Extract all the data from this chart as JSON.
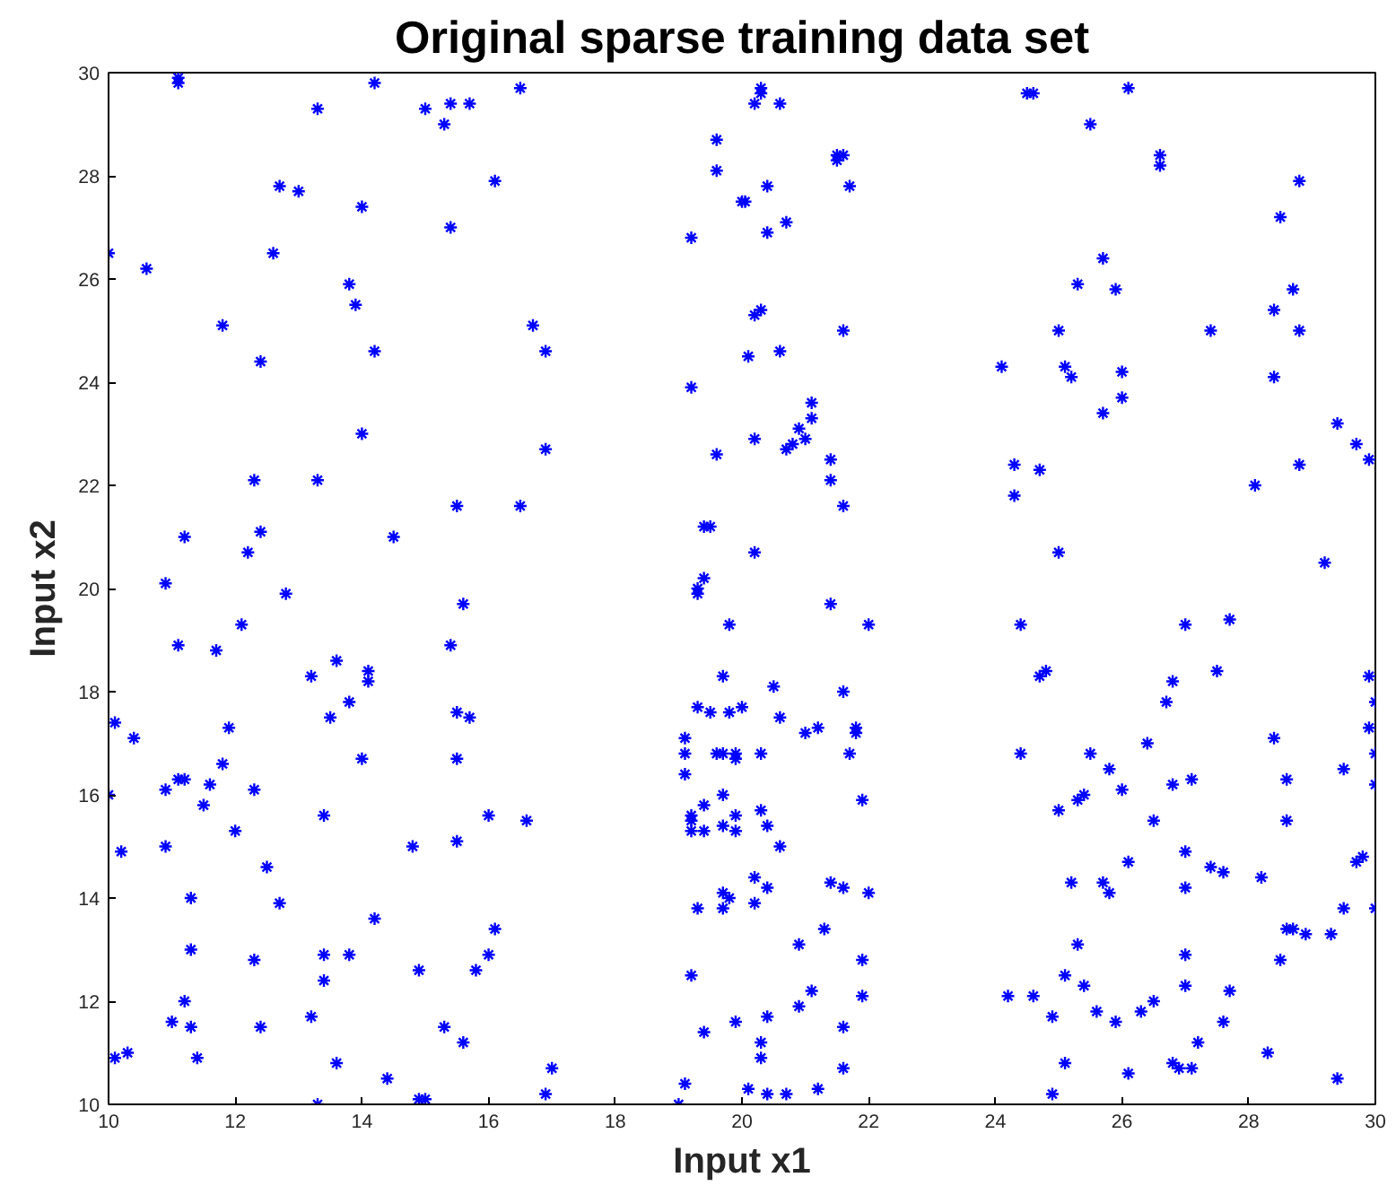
{
  "chart_data": {
    "type": "scatter",
    "title": "Original sparse training data set",
    "xlabel": "Input x1",
    "ylabel": "Input x2",
    "xlim": [
      10,
      30
    ],
    "ylim": [
      10,
      30
    ],
    "xticks": [
      10,
      12,
      14,
      16,
      18,
      20,
      22,
      24,
      26,
      28,
      30
    ],
    "yticks": [
      10,
      12,
      14,
      16,
      18,
      20,
      22,
      24,
      26,
      28,
      30
    ],
    "grid": false,
    "marker": "cross",
    "series": [
      {
        "color": "#0000ff",
        "x": [
          10.0,
          10.1,
          10.0,
          10.2,
          10.1,
          10.3,
          10.4,
          10.6,
          10.9,
          10.9,
          10.9,
          11.0,
          11.1,
          11.1,
          11.1,
          11.2,
          11.1,
          11.2,
          11.2,
          11.3,
          11.3,
          11.3,
          11.5,
          11.4,
          11.6,
          11.7,
          11.8,
          11.8,
          11.9,
          12.0,
          12.1,
          12.2,
          12.3,
          12.4,
          12.3,
          12.3,
          12.4,
          12.4,
          12.5,
          12.6,
          12.7,
          12.8,
          12.7,
          13.0,
          13.2,
          13.2,
          13.3,
          13.3,
          13.4,
          13.4,
          13.4,
          13.3,
          13.5,
          13.6,
          13.6,
          13.8,
          13.8,
          13.8,
          13.9,
          14.0,
          14.0,
          14.0,
          14.1,
          14.1,
          14.2,
          14.2,
          14.2,
          14.4,
          14.5,
          14.8,
          14.9,
          14.9,
          15.0,
          15.0,
          15.3,
          15.3,
          15.4,
          15.4,
          15.4,
          15.5,
          15.5,
          15.5,
          15.5,
          15.6,
          15.6,
          15.7,
          15.7,
          15.8,
          16.0,
          16.1,
          16.0,
          16.1,
          16.5,
          16.5,
          16.6,
          16.7,
          16.9,
          16.9,
          17.0,
          16.9,
          19.0,
          19.1,
          19.2,
          19.2,
          19.1,
          19.1,
          19.1,
          19.2,
          19.2,
          19.2,
          19.2,
          19.3,
          19.3,
          19.3,
          19.3,
          19.4,
          19.4,
          19.4,
          19.4,
          19.4,
          19.5,
          19.5,
          19.6,
          19.6,
          19.6,
          19.7,
          19.6,
          19.7,
          19.7,
          19.7,
          19.7,
          19.7,
          19.8,
          19.8,
          19.9,
          19.9,
          19.9,
          19.9,
          19.8,
          19.9,
          20.0,
          20.05,
          20.0,
          20.1,
          20.1,
          20.2,
          20.2,
          20.2,
          20.2,
          20.3,
          20.2,
          20.2,
          20.3,
          20.3,
          20.3,
          20.3,
          20.3,
          20.4,
          20.3,
          20.4,
          20.4,
          20.4,
          20.4,
          20.4,
          20.5,
          20.6,
          20.6,
          20.7,
          20.7,
          20.6,
          20.6,
          20.7,
          20.8,
          20.9,
          20.9,
          20.9,
          21.0,
          21.0,
          21.1,
          21.1,
          21.1,
          21.2,
          21.2,
          21.3,
          21.4,
          21.4,
          21.4,
          21.4,
          21.5,
          21.5,
          21.6,
          21.6,
          21.6,
          21.6,
          21.6,
          21.6,
          21.6,
          21.7,
          21.7,
          21.8,
          21.8,
          21.9,
          21.9,
          21.9,
          22.0,
          22.0,
          24.1,
          24.2,
          24.3,
          24.3,
          24.4,
          24.4,
          24.5,
          24.6,
          24.6,
          24.7,
          24.7,
          24.8,
          24.9,
          24.9,
          25.0,
          25.0,
          25.0,
          25.1,
          25.1,
          25.1,
          25.2,
          25.2,
          25.3,
          25.3,
          25.3,
          25.4,
          25.4,
          25.5,
          25.5,
          25.6,
          25.7,
          25.8,
          25.7,
          25.7,
          25.8,
          25.9,
          25.9,
          26.0,
          26.0,
          26.1,
          26.0,
          26.1,
          26.1,
          26.3,
          26.4,
          26.5,
          26.5,
          26.6,
          26.6,
          26.7,
          26.8,
          26.8,
          26.8,
          26.9,
          27.0,
          27.0,
          27.0,
          27.0,
          27.0,
          27.1,
          27.1,
          27.2,
          27.4,
          27.4,
          27.5,
          27.6,
          27.6,
          27.7,
          27.7,
          28.1,
          28.2,
          28.3,
          28.4,
          28.4,
          28.4,
          28.5,
          28.5,
          28.6,
          28.6,
          28.6,
          28.7,
          28.7,
          28.8,
          28.8,
          28.8,
          28.9,
          29.2,
          29.3,
          29.4,
          29.5,
          29.4,
          29.5,
          29.7,
          29.7,
          29.8,
          29.9,
          29.9,
          29.9,
          30.0,
          30.0,
          30.0,
          30.0
        ],
        "values": [
          26.5,
          17.4,
          16.0,
          14.9,
          10.9,
          11.0,
          17.1,
          26.2,
          20.1,
          16.1,
          15.0,
          11.6,
          29.9,
          29.8,
          18.9,
          21.0,
          16.3,
          16.3,
          12.0,
          11.5,
          13.0,
          14.0,
          15.8,
          10.9,
          16.2,
          18.8,
          16.6,
          25.1,
          17.3,
          15.3,
          19.3,
          20.7,
          22.1,
          21.1,
          12.8,
          16.1,
          24.4,
          11.5,
          14.6,
          26.5,
          27.8,
          19.9,
          13.9,
          27.7,
          18.3,
          11.7,
          29.3,
          22.1,
          12.9,
          12.4,
          15.6,
          10.0,
          17.5,
          18.6,
          10.8,
          17.8,
          12.9,
          25.9,
          25.5,
          23.0,
          27.4,
          16.7,
          18.4,
          18.2,
          13.6,
          24.6,
          29.8,
          10.5,
          21.0,
          15.0,
          10.1,
          12.6,
          10.1,
          29.3,
          29.0,
          11.5,
          27.0,
          18.9,
          29.4,
          17.6,
          15.1,
          16.7,
          21.6,
          19.7,
          11.2,
          29.4,
          17.5,
          12.6,
          15.6,
          13.4,
          12.9,
          27.9,
          21.6,
          29.7,
          15.5,
          25.1,
          24.6,
          22.7,
          10.7,
          10.2,
          10.0,
          10.4,
          23.9,
          26.8,
          17.1,
          16.8,
          16.4,
          15.6,
          15.5,
          15.3,
          12.5,
          19.9,
          20.0,
          17.7,
          13.8,
          21.2,
          20.2,
          11.4,
          15.8,
          15.3,
          21.2,
          17.6,
          28.1,
          28.7,
          22.6,
          18.3,
          16.8,
          16.8,
          16.0,
          15.4,
          14.1,
          13.8,
          19.3,
          17.6,
          16.8,
          16.7,
          15.6,
          15.3,
          14.0,
          11.6,
          27.5,
          27.5,
          17.7,
          24.5,
          10.3,
          29.4,
          20.7,
          22.9,
          25.3,
          25.4,
          14.4,
          13.9,
          29.7,
          29.6,
          16.8,
          15.7,
          11.2,
          10.2,
          10.9,
          27.8,
          26.9,
          15.4,
          14.2,
          11.7,
          18.1,
          29.4,
          24.6,
          27.1,
          22.7,
          17.5,
          15.0,
          10.2,
          22.8,
          23.1,
          13.1,
          11.9,
          22.9,
          17.2,
          23.6,
          23.3,
          12.2,
          10.3,
          17.3,
          13.4,
          22.5,
          22.1,
          19.7,
          14.3,
          28.4,
          28.3,
          28.4,
          25.0,
          21.6,
          18.0,
          14.2,
          11.5,
          10.7,
          16.8,
          27.8,
          17.3,
          17.2,
          15.9,
          12.8,
          12.1,
          19.3,
          14.1,
          24.3,
          12.1,
          21.8,
          22.4,
          19.3,
          16.8,
          29.6,
          29.6,
          12.1,
          22.3,
          18.3,
          18.4,
          11.7,
          10.2,
          15.7,
          25.0,
          20.7,
          24.3,
          12.5,
          10.8,
          24.1,
          14.3,
          25.9,
          13.1,
          15.9,
          16.0,
          12.3,
          16.8,
          29.0,
          11.8,
          14.3,
          14.1,
          23.4,
          26.4,
          16.5,
          25.8,
          11.6,
          24.2,
          23.7,
          29.7,
          16.1,
          14.7,
          10.6,
          11.8,
          17.0,
          12.0,
          15.5,
          28.2,
          28.4,
          17.8,
          18.2,
          16.2,
          10.8,
          10.7,
          12.9,
          12.3,
          14.9,
          14.2,
          19.3,
          10.7,
          16.3,
          11.2,
          25.0,
          14.6,
          18.4,
          11.6,
          14.5,
          19.4,
          12.2,
          22.0,
          14.4,
          11.0,
          25.4,
          24.1,
          17.1,
          12.8,
          27.2,
          13.4,
          16.3,
          15.5,
          13.4,
          25.8,
          27.9,
          22.4,
          25.0,
          13.3,
          20.5,
          13.3,
          10.5,
          16.5,
          23.2,
          13.8,
          22.8,
          14.7,
          14.8,
          22.5,
          18.3,
          17.3,
          17.8,
          16.8,
          16.2,
          13.8
        ]
      }
    ]
  }
}
